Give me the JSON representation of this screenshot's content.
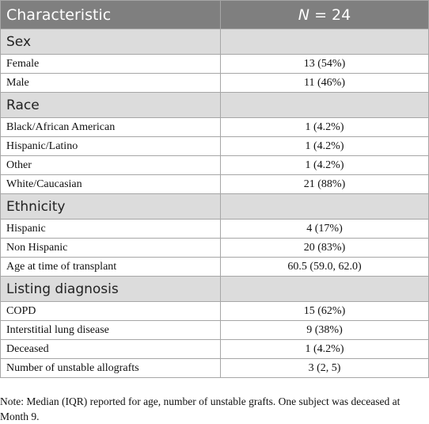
{
  "table": {
    "header": {
      "characteristic": "Characteristic",
      "n_symbol": "N",
      "n_value": "= 24"
    },
    "sections": [
      {
        "title": "Sex",
        "rows": [
          [
            "Female",
            "13 (54%)"
          ],
          [
            "Male",
            "11 (46%)"
          ]
        ]
      },
      {
        "title": "Race",
        "rows": [
          [
            "Black/African American",
            "1 (4.2%)"
          ],
          [
            "Hispanic/Latino",
            "1 (4.2%)"
          ],
          [
            "Other",
            "1 (4.2%)"
          ],
          [
            "White/Caucasian",
            "21 (88%)"
          ]
        ]
      },
      {
        "title": "Ethnicity",
        "rows": [
          [
            "Hispanic",
            "4 (17%)"
          ],
          [
            "Non Hispanic",
            "20 (83%)"
          ],
          [
            "Age at time of transplant",
            "60.5 (59.0, 62.0)"
          ]
        ]
      },
      {
        "title": "Listing diagnosis",
        "rows": [
          [
            "COPD",
            "15 (62%)"
          ],
          [
            "Interstitial lung disease",
            "9 (38%)"
          ],
          [
            "Deceased",
            "1 (4.2%)"
          ],
          [
            "Number of unstable allografts",
            "3 (2, 5)"
          ]
        ]
      }
    ],
    "note": "Note: Median (IQR) reported for age, number of unstable grafts. One subject was deceased at Month 9."
  }
}
